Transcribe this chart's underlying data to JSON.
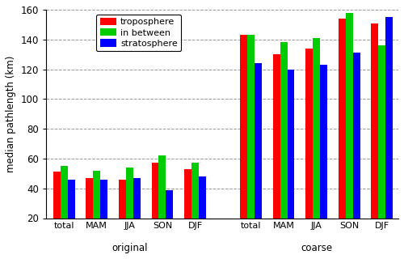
{
  "groups_orig": [
    "total",
    "MAM",
    "JJA",
    "SON",
    "DJF"
  ],
  "groups_coarse": [
    "total",
    "MAM",
    "JJA",
    "SON",
    "DJF"
  ],
  "values": {
    "troposphere": [
      51,
      47,
      46,
      57,
      53,
      143,
      130,
      134,
      154,
      151
    ],
    "in_between": [
      55,
      52,
      54,
      62,
      57,
      143,
      138,
      141,
      158,
      136
    ],
    "stratosphere": [
      46,
      46,
      47,
      39,
      48,
      124,
      120,
      123,
      131,
      155
    ]
  },
  "colors": {
    "troposphere": "#ff0000",
    "in_between": "#00cc00",
    "stratosphere": "#0000ff"
  },
  "legend_labels": [
    "troposphere",
    "in between",
    "stratosphere"
  ],
  "ylabel": "median pathlength (km)",
  "ylim": [
    20,
    160
  ],
  "yticks": [
    20,
    40,
    60,
    80,
    100,
    120,
    140,
    160
  ],
  "bar_width": 0.22,
  "figsize": [
    5.0,
    3.2
  ],
  "dpi": 100,
  "bg_color": "#ffffff",
  "grid_color": "#999999"
}
